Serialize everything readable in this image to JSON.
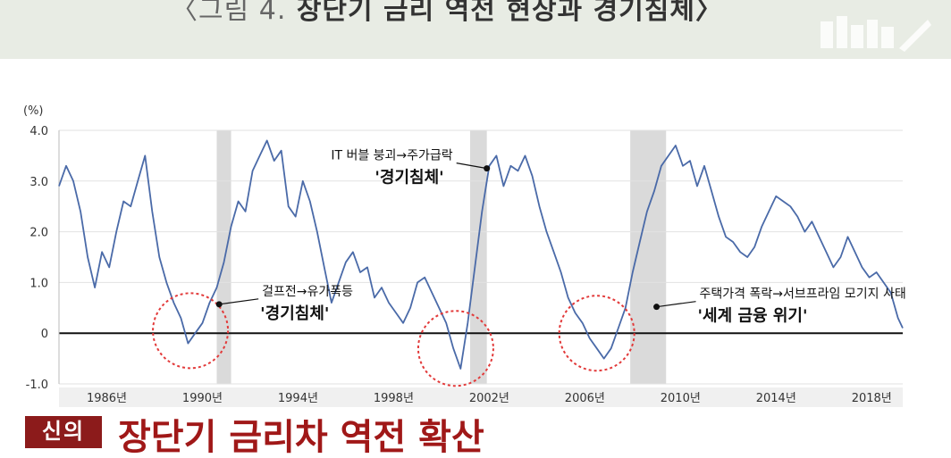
{
  "header": {
    "title_prefix": "〈그림 4.",
    "title_main": "장단기 금리 역전 현상과 경기침체〉"
  },
  "footer": {
    "logo_text": "신의",
    "headline": "장단기 금리차 역전 확산"
  },
  "chart_data": {
    "type": "line",
    "title": "",
    "xlabel": "",
    "ylabel": "(%)",
    "ylim": [
      -1.0,
      4.0
    ],
    "xlim": [
      1984.0,
      2019.3
    ],
    "y_ticks": [
      "4.0",
      "3.0",
      "2.0",
      "1.0",
      "0",
      "-1.0"
    ],
    "y_tick_values": [
      4.0,
      3.0,
      2.0,
      1.0,
      0,
      -1.0
    ],
    "x_ticks": [
      "1986년",
      "1990년",
      "1994년",
      "1998년",
      "2002년",
      "2006년",
      "2010년",
      "2014년",
      "2018년"
    ],
    "x_tick_values": [
      1986,
      1990,
      1994,
      1998,
      2002,
      2006,
      2010,
      2014,
      2018
    ],
    "recessions": [
      [
        1990.6,
        1991.2
      ],
      [
        2001.2,
        2001.9
      ],
      [
        2007.9,
        2009.4
      ]
    ],
    "inversion_circles": [
      {
        "cx": 1989.5,
        "cy": 0.05
      },
      {
        "cx": 2000.6,
        "cy": -0.3
      },
      {
        "cx": 2006.5,
        "cy": 0.0
      }
    ],
    "annotations": [
      {
        "x": 2001.9,
        "y": 3.25,
        "side": "left",
        "line1": "IT 버블 붕괴→주가급락",
        "line2": "'경기침체'"
      },
      {
        "x": 1990.7,
        "y": 0.57,
        "side": "right",
        "line1": "걸프전→유가폭등",
        "line2": "'경기침체'"
      },
      {
        "x": 2009.0,
        "y": 0.52,
        "side": "right",
        "line1": "주택가격 폭락→서브프라임 모기지 사태",
        "line2": "'세계 금융 위기'"
      }
    ],
    "series": [
      {
        "x": [
          1984.0,
          1984.3,
          1984.6,
          1984.9,
          1985.2,
          1985.5,
          1985.8,
          1986.1,
          1986.4,
          1986.7,
          1987.0,
          1987.3,
          1987.6,
          1987.9,
          1988.2,
          1988.5,
          1988.8,
          1989.1,
          1989.4,
          1989.7,
          1990.0,
          1990.3,
          1990.6,
          1990.9,
          1991.2,
          1991.5,
          1991.8,
          1992.1,
          1992.4,
          1992.7,
          1993.0,
          1993.3,
          1993.6,
          1993.9,
          1994.2,
          1994.5,
          1994.8,
          1995.1,
          1995.4,
          1995.7,
          1996.0,
          1996.3,
          1996.6,
          1996.9,
          1997.2,
          1997.5,
          1997.8,
          1998.1,
          1998.4,
          1998.7,
          1999.0,
          1999.3,
          1999.6,
          1999.9,
          2000.2,
          2000.5,
          2000.8,
          2001.1,
          2001.4,
          2001.7,
          2002.0,
          2002.3,
          2002.6,
          2002.9,
          2003.2,
          2003.5,
          2003.8,
          2004.1,
          2004.4,
          2004.7,
          2005.0,
          2005.3,
          2005.6,
          2005.9,
          2006.2,
          2006.5,
          2006.8,
          2007.1,
          2007.4,
          2007.7,
          2008.0,
          2008.3,
          2008.6,
          2008.9,
          2009.2,
          2009.5,
          2009.8,
          2010.1,
          2010.4,
          2010.7,
          2011.0,
          2011.3,
          2011.6,
          2011.9,
          2012.2,
          2012.5,
          2012.8,
          2013.1,
          2013.4,
          2013.7,
          2014.0,
          2014.3,
          2014.6,
          2014.9,
          2015.2,
          2015.5,
          2015.8,
          2016.1,
          2016.4,
          2016.7,
          2017.0,
          2017.3,
          2017.6,
          2017.9,
          2018.2,
          2018.5,
          2018.8,
          2019.1,
          2019.3
        ],
        "values": [
          2.9,
          3.3,
          3.0,
          2.4,
          1.5,
          0.9,
          1.6,
          1.3,
          2.0,
          2.6,
          2.5,
          3.0,
          3.5,
          2.4,
          1.5,
          1.0,
          0.6,
          0.3,
          -0.2,
          0.0,
          0.2,
          0.6,
          0.9,
          1.4,
          2.1,
          2.6,
          2.4,
          3.2,
          3.5,
          3.8,
          3.4,
          3.6,
          2.5,
          2.3,
          3.0,
          2.6,
          2.0,
          1.3,
          0.6,
          1.0,
          1.4,
          1.6,
          1.2,
          1.3,
          0.7,
          0.9,
          0.6,
          0.4,
          0.2,
          0.5,
          1.0,
          1.1,
          0.8,
          0.5,
          0.2,
          -0.3,
          -0.7,
          0.2,
          1.3,
          2.4,
          3.3,
          3.5,
          2.9,
          3.3,
          3.2,
          3.5,
          3.1,
          2.5,
          2.0,
          1.6,
          1.2,
          0.7,
          0.4,
          0.2,
          -0.1,
          -0.3,
          -0.5,
          -0.3,
          0.1,
          0.5,
          1.2,
          1.8,
          2.4,
          2.8,
          3.3,
          3.5,
          3.7,
          3.3,
          3.4,
          2.9,
          3.3,
          2.8,
          2.3,
          1.9,
          1.8,
          1.6,
          1.5,
          1.7,
          2.1,
          2.4,
          2.7,
          2.6,
          2.5,
          2.3,
          2.0,
          2.2,
          1.9,
          1.6,
          1.3,
          1.5,
          1.9,
          1.6,
          1.3,
          1.1,
          1.2,
          1.0,
          0.8,
          0.3,
          0.1
        ]
      }
    ]
  }
}
